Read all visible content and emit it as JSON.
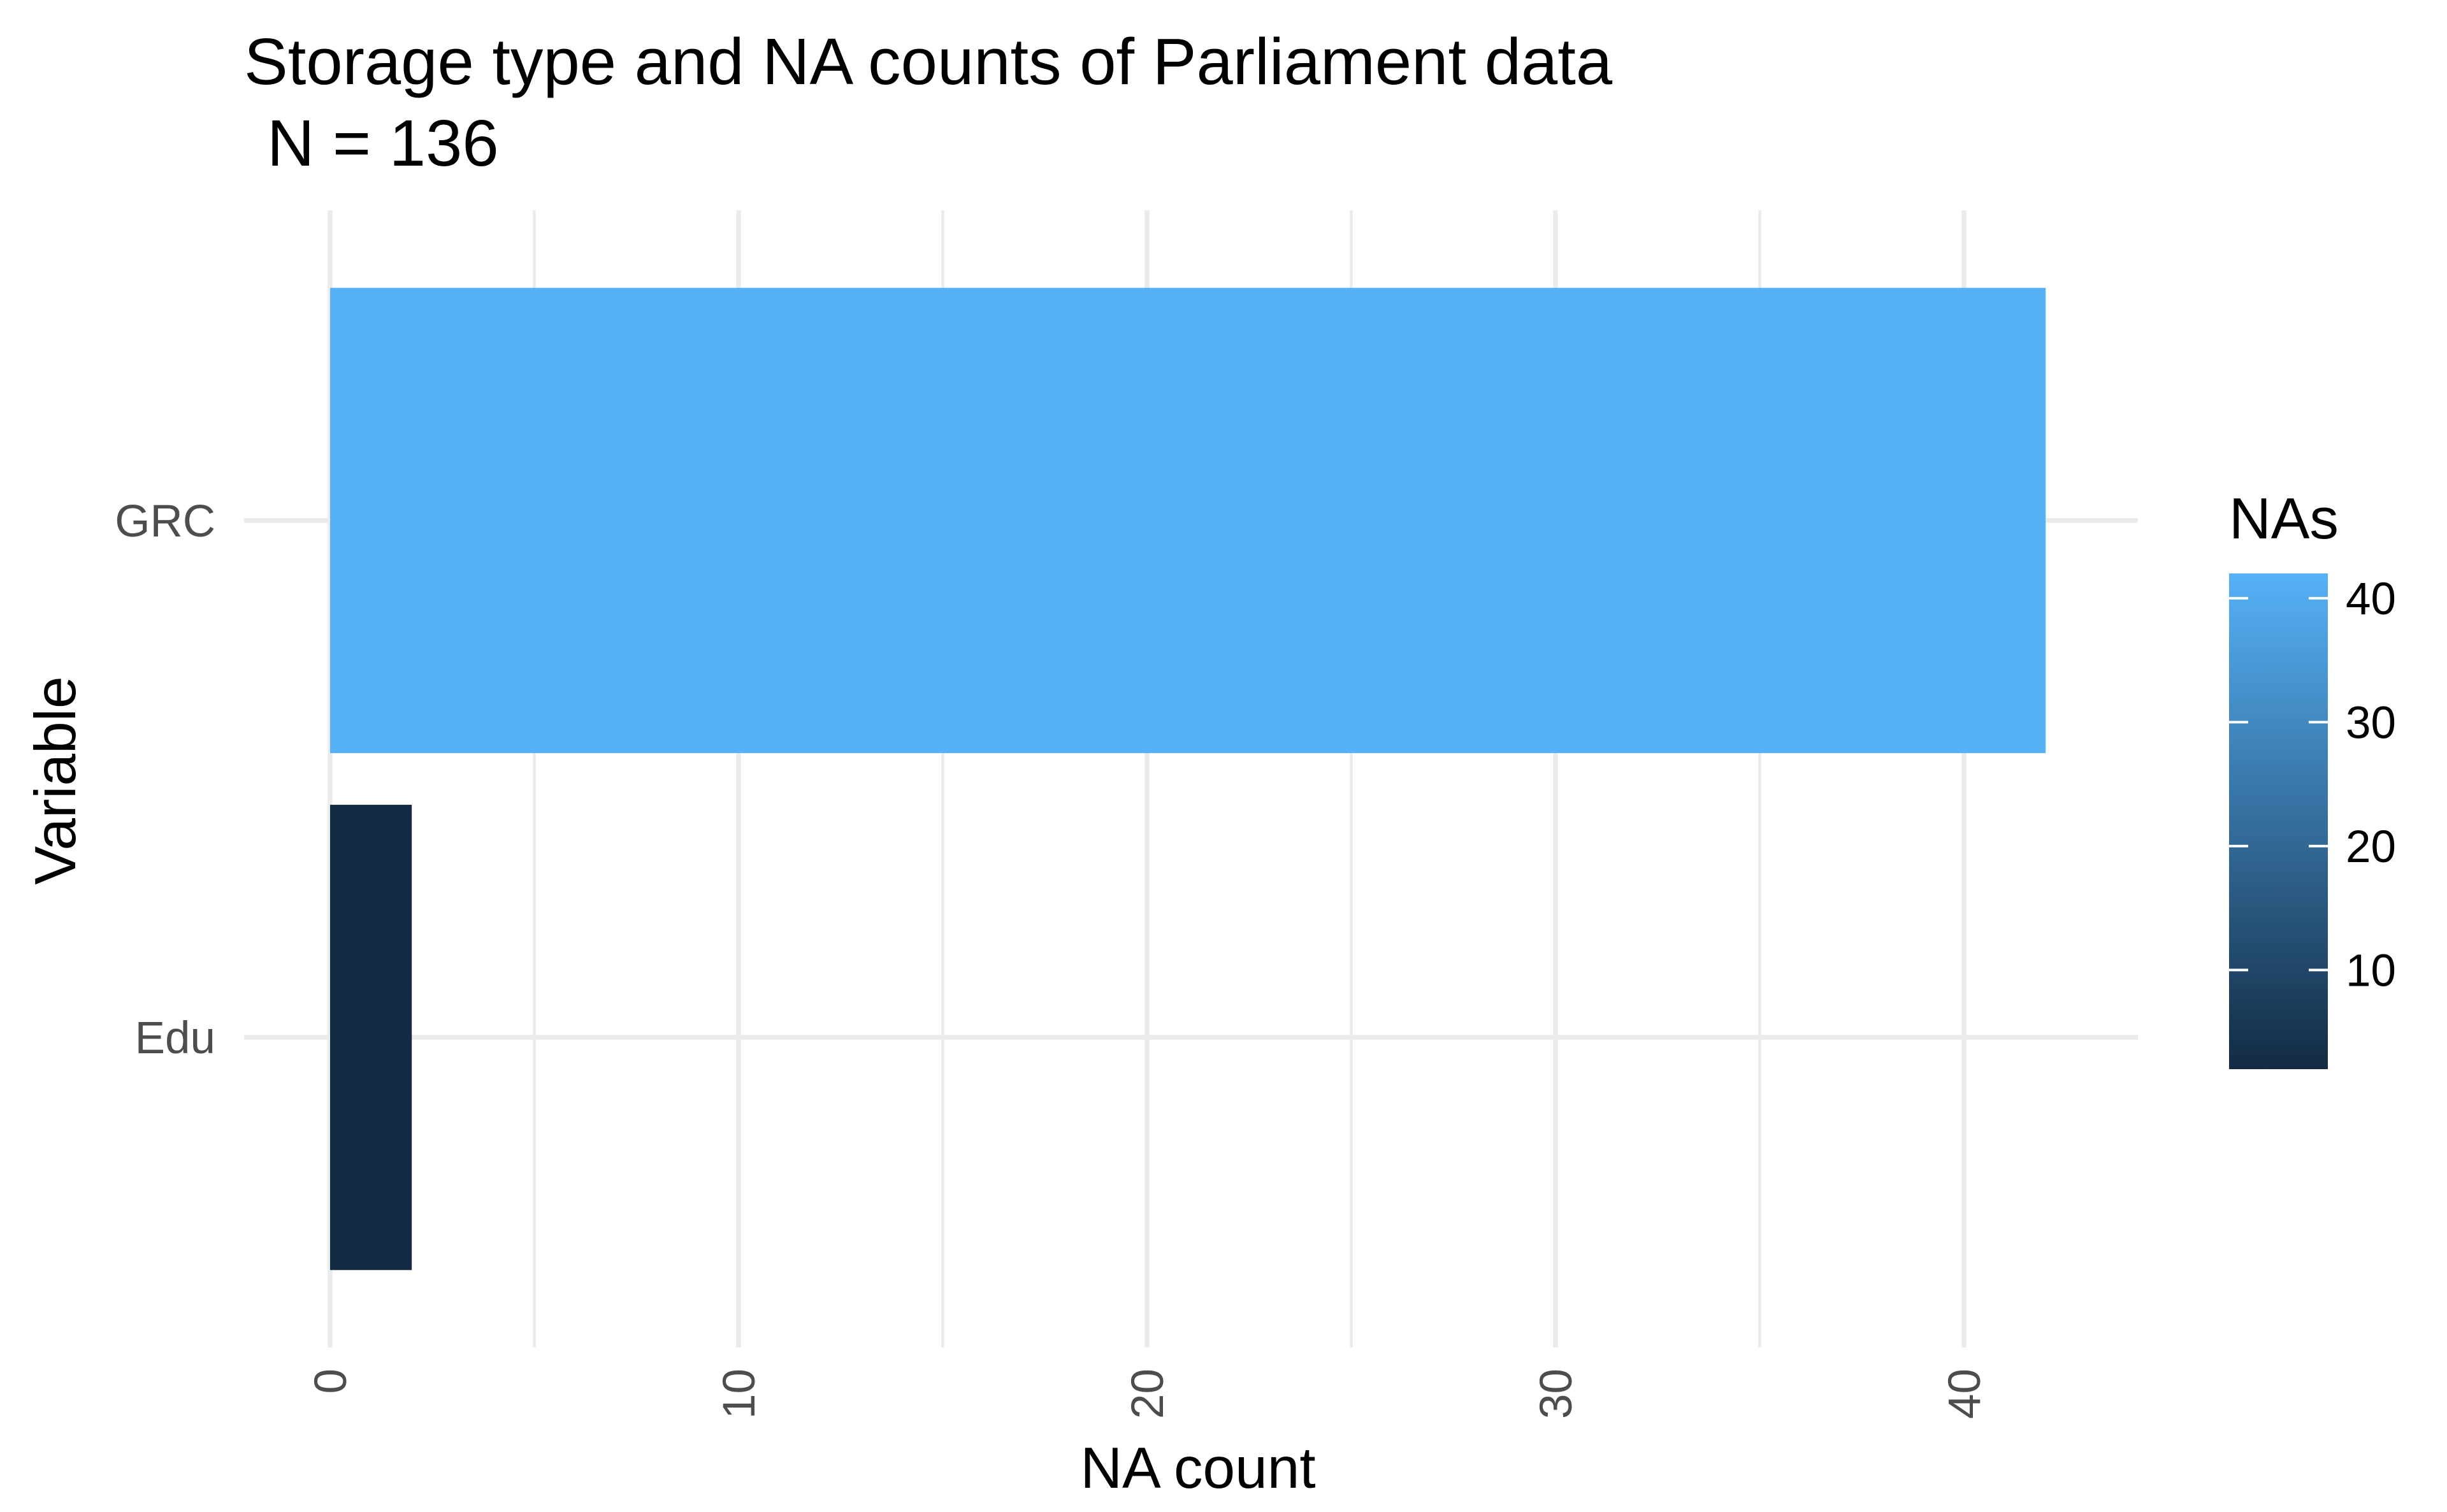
{
  "chart_data": {
    "type": "bar",
    "orientation": "horizontal",
    "title": "Storage type and NA counts of Parliament data",
    "subtitle": "N = 136",
    "xlabel": "NA count",
    "ylabel": "Variable",
    "categories": [
      "Edu",
      "GRC"
    ],
    "values": [
      2,
      42
    ],
    "xlim": [
      0,
      44
    ],
    "xticks": [
      0,
      10,
      20,
      30,
      40
    ],
    "grid": true,
    "legend": {
      "title": "NAs",
      "placement": "right",
      "type": "colorbar",
      "range": [
        2,
        42
      ],
      "breaks": [
        10,
        20,
        30,
        40
      ],
      "low_color": "#132B43",
      "high_color": "#56B1F7"
    }
  }
}
